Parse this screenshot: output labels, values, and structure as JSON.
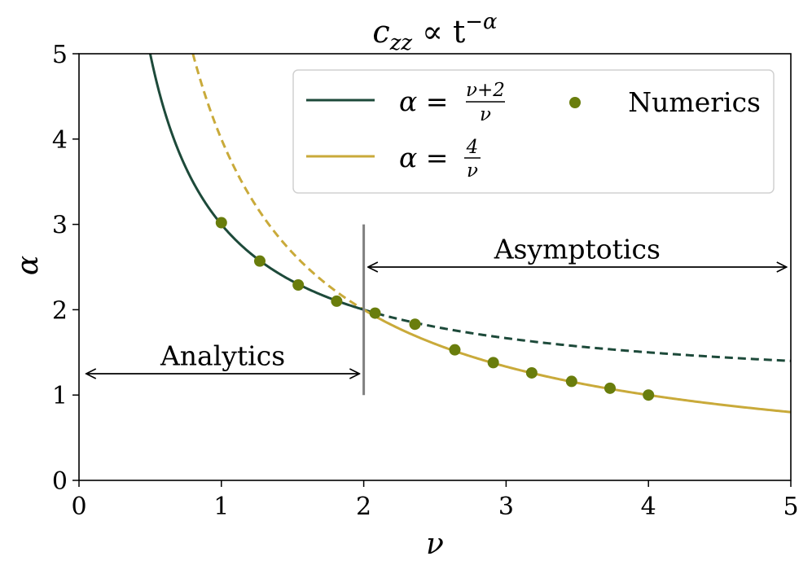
{
  "chart_data": {
    "type": "line",
    "title": "c_zz ∝ t^−α",
    "title_parts": {
      "base": "c",
      "sub": "zz",
      "mid": " ∝ t",
      "sup": "−α"
    },
    "xlabel": "ν",
    "ylabel": "α",
    "xlim": [
      0,
      5
    ],
    "ylim": [
      0,
      5
    ],
    "xticks": [
      0,
      1,
      2,
      3,
      4,
      5
    ],
    "yticks": [
      0,
      1,
      2,
      3,
      4,
      5
    ],
    "grid": false,
    "legend_placement": "top-right",
    "colors": {
      "green": "#1d4a3a",
      "gold": "#c9aa3a",
      "dots": "#697d0c",
      "divider": "#808080"
    },
    "series": [
      {
        "name": "α = (ν+2)/ν",
        "formula": "(nu+2)/nu",
        "solid_range": [
          0.5,
          2.0
        ],
        "dashed_range": [
          2.0,
          5.0
        ]
      },
      {
        "name": "α = 4/ν",
        "formula": "4/nu",
        "dashed_range": [
          0.8,
          2.0
        ],
        "solid_range": [
          2.0,
          5.0
        ]
      },
      {
        "name": "Numerics",
        "type": "scatter",
        "x": [
          1.0,
          1.27,
          1.54,
          1.81,
          2.08,
          2.36,
          2.64,
          2.91,
          3.18,
          3.46,
          3.73,
          4.0
        ],
        "y": [
          3.02,
          2.57,
          2.29,
          2.1,
          1.96,
          1.83,
          1.53,
          1.38,
          1.26,
          1.16,
          1.08,
          1.0
        ]
      }
    ],
    "divider": {
      "x": 2.0,
      "y_range": [
        1.0,
        3.0
      ]
    },
    "annotations": [
      {
        "text": "Analytics",
        "arrow_x": [
          0.05,
          1.97
        ],
        "arrow_y": 1.25,
        "label_y": 1.35
      },
      {
        "text": "Asymptotics",
        "arrow_x": [
          2.03,
          4.97
        ],
        "arrow_y": 2.5,
        "label_y": 2.6
      }
    ],
    "legend": {
      "line1": {
        "prefix": "α = ",
        "num": "ν+2",
        "den": "ν"
      },
      "line2": {
        "prefix": "α = ",
        "num": "4",
        "den": "ν"
      },
      "dots": "Numerics"
    }
  }
}
